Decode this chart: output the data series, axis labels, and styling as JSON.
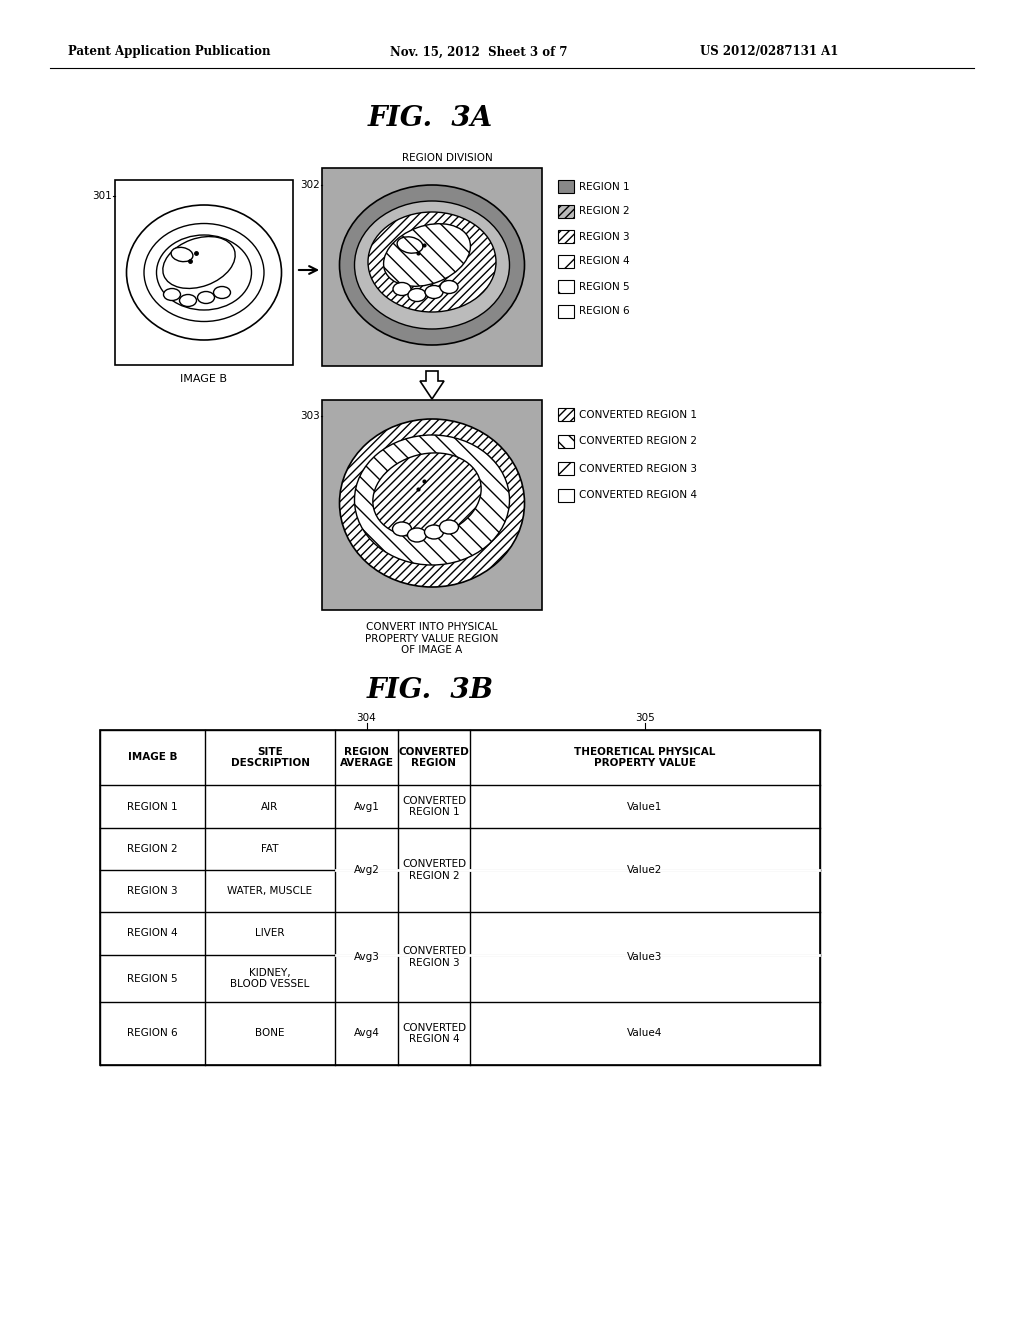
{
  "header_left": "Patent Application Publication",
  "header_mid": "Nov. 15, 2012  Sheet 3 of 7",
  "header_right": "US 2012/0287131 A1",
  "fig3a_title": "FIG.  3A",
  "fig3b_title": "FIG.  3B",
  "region_division_label": "REGION DIVISION",
  "label_301": "301",
  "label_302": "302",
  "label_303": "303",
  "label_304": "304",
  "label_305": "305",
  "image_b_label": "IMAGE B",
  "convert_label": "CONVERT INTO PHYSICAL\nPROPERTY VALUE REGION\nOF IMAGE A",
  "legend1_items": [
    "REGION 1",
    "REGION 2",
    "REGION 3",
    "REGION 4",
    "REGION 5",
    "REGION 6"
  ],
  "legend2_items": [
    "CONVERTED REGION 1",
    "CONVERTED REGION 2",
    "CONVERTED REGION 3",
    "CONVERTED REGION 4"
  ],
  "table_headers": [
    "IMAGE B",
    "SITE\nDESCRIPTION",
    "REGION\nAVERAGE",
    "CONVERTED\nREGION",
    "THEORETICAL PHYSICAL\nPROPERTY VALUE"
  ],
  "bg_color": "#ffffff"
}
